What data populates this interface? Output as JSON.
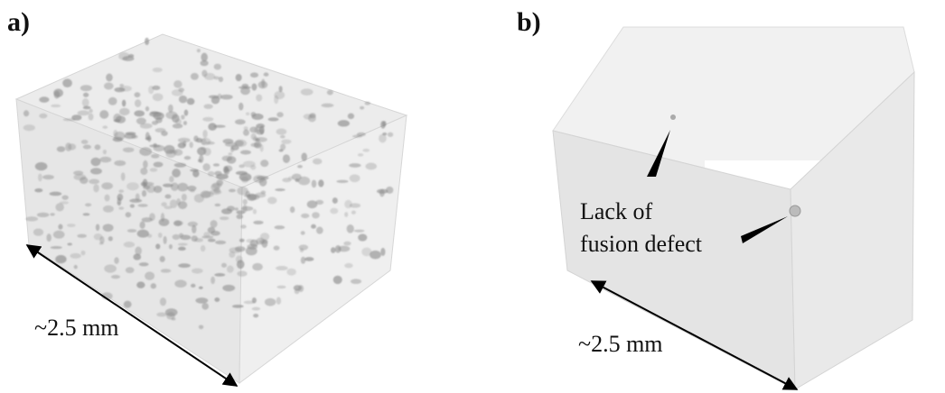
{
  "panels": [
    {
      "label": "a)",
      "scale": "~2.5 mm"
    },
    {
      "label": "b)",
      "scale": "~2.5 mm",
      "annotation": [
        "Lack of",
        "fusion defect"
      ]
    }
  ]
}
